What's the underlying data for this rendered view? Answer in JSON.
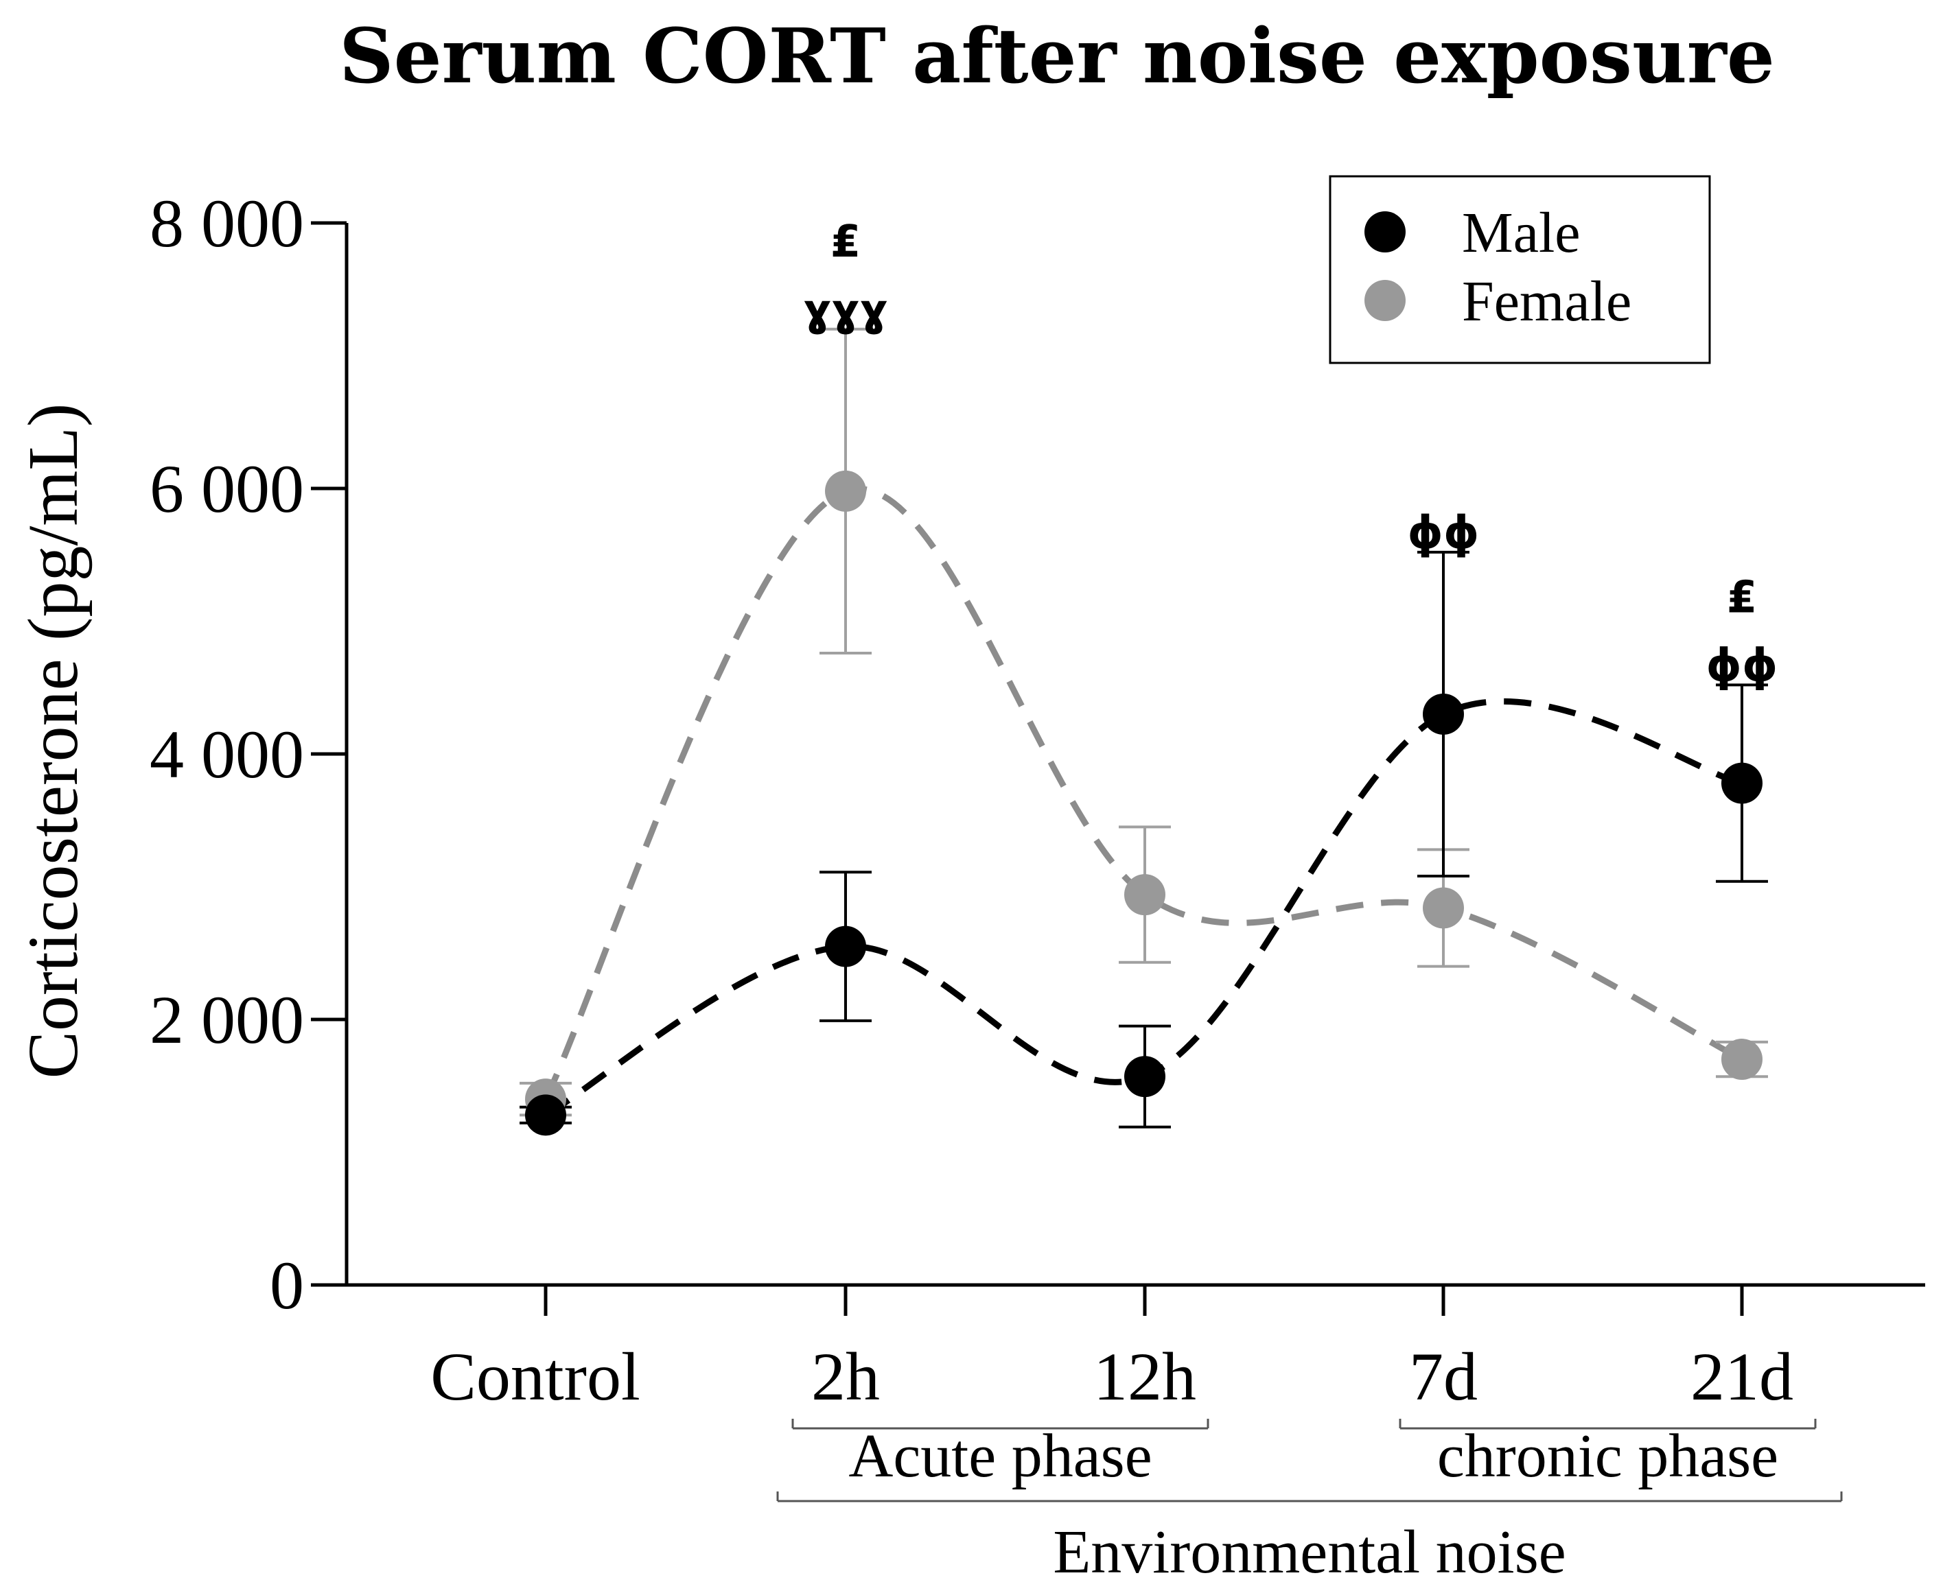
{
  "chart_data": {
    "type": "line",
    "title": "Serum CORT after noise exposure",
    "ylabel": "Corticosterone (pg/mL)",
    "xlabel": "",
    "ylim": [
      0,
      8000
    ],
    "yticks": [
      0,
      2000,
      4000,
      6000,
      8000
    ],
    "ytick_labels": [
      "0",
      "2 000",
      "4 000",
      "6 000",
      "8 000"
    ],
    "categories": [
      "Control",
      "2h",
      "12h",
      "7d",
      "21d"
    ],
    "groups": [
      {
        "label": "Acute phase",
        "categories": [
          "2h",
          "12h"
        ]
      },
      {
        "label": "chronic phase",
        "categories": [
          "7d",
          "21d"
        ]
      },
      {
        "label": "Environmental noise",
        "categories": [
          "2h",
          "12h",
          "7d",
          "21d"
        ]
      }
    ],
    "series": [
      {
        "name": "Male",
        "color": "#000000",
        "values": [
          1280,
          2550,
          1570,
          4300,
          3780
        ],
        "errors": [
          60,
          560,
          380,
          1220,
          740
        ]
      },
      {
        "name": "Female",
        "color": "#999999",
        "values": [
          1400,
          5980,
          2940,
          2840,
          1700
        ],
        "errors": [
          120,
          1220,
          510,
          440,
          130
        ]
      }
    ],
    "legend": {
      "position": "top-right",
      "entries": [
        "Male",
        "Female"
      ]
    },
    "annotations": [
      {
        "category": "2h",
        "series": "Female",
        "symbols": [
          "₤",
          "ɣɣɣ"
        ]
      },
      {
        "category": "7d",
        "series": "Male",
        "symbols": [
          "ϕϕ"
        ]
      },
      {
        "category": "21d",
        "series": "Male",
        "symbols": [
          "₤",
          "ϕϕ"
        ]
      }
    ]
  }
}
